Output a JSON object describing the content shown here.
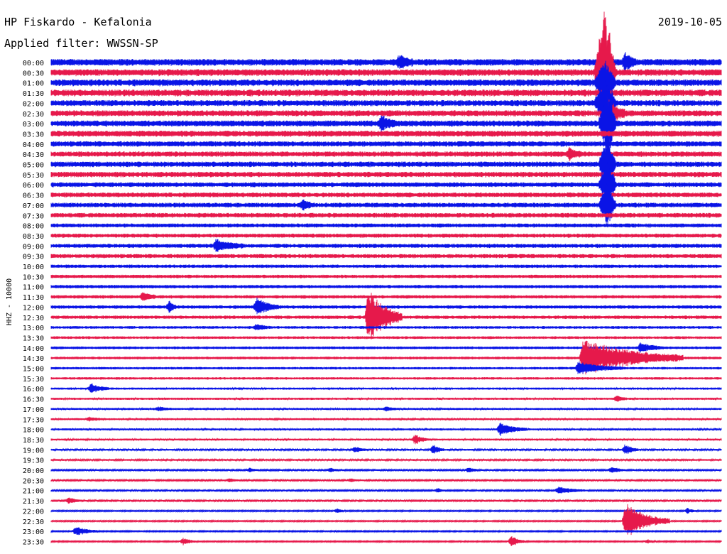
{
  "header": {
    "station": "HP Fiskardo - Kefalonia",
    "filter": "Applied filter: WWSSN-SP",
    "date": "2019-10-05"
  },
  "chart_data": {
    "type": "line",
    "subtype": "helicorder",
    "title": "HP Fiskardo - Kefalonia",
    "subtitle": "Applied filter: WWSSN-SP",
    "date": "2019-10-05",
    "ylabel": "HHZ - 10000",
    "row_labels": [
      "00:00",
      "00:30",
      "01:00",
      "01:30",
      "02:00",
      "02:30",
      "03:00",
      "03:30",
      "04:00",
      "04:30",
      "05:00",
      "05:30",
      "06:00",
      "06:30",
      "07:00",
      "07:30",
      "08:00",
      "08:30",
      "09:00",
      "09:30",
      "10:00",
      "10:30",
      "11:00",
      "11:30",
      "12:00",
      "12:30",
      "13:00",
      "13:30",
      "14:00",
      "14:30",
      "15:00",
      "15:30",
      "16:00",
      "16:30",
      "17:00",
      "17:30",
      "18:00",
      "18:30",
      "19:00",
      "19:30",
      "20:00",
      "20:30",
      "21:00",
      "21:30",
      "22:00",
      "22:30",
      "23:00",
      "23:30"
    ],
    "row_minutes": 30,
    "colors": [
      "#0a14e6",
      "#e6194b"
    ],
    "noise_level": [
      5,
      5,
      5,
      5,
      4.5,
      4.5,
      4.5,
      4.5,
      4,
      4,
      4,
      4,
      3.5,
      3.5,
      3.5,
      3.5,
      3,
      3,
      3,
      3,
      2.5,
      2.5,
      2.5,
      2.5,
      2.5,
      2.5,
      2,
      2,
      2,
      2,
      1.8,
      1.8,
      1.6,
      1.6,
      1.5,
      1.5,
      1.5,
      1.5,
      1.3,
      1.3,
      1.2,
      1.2,
      1.2,
      1.2,
      1,
      1,
      1,
      1
    ],
    "events": [
      {
        "row": 0,
        "minute": 15.6,
        "amp": 10,
        "dur": 0.6
      },
      {
        "row": 0,
        "minute": 25.7,
        "amp": 12,
        "dur": 0.5
      },
      {
        "row": 1,
        "minute": 24.8,
        "amp": 95,
        "dur": 0.5,
        "spike": true
      },
      {
        "row": 2,
        "minute": 24.8,
        "amp": 30,
        "dur": 0.5,
        "spike": true
      },
      {
        "row": 4,
        "minute": 24.8,
        "amp": 40,
        "dur": 0.5,
        "spike": true
      },
      {
        "row": 5,
        "minute": 24.9,
        "amp": 25,
        "dur": 0.8
      },
      {
        "row": 6,
        "minute": 14.8,
        "amp": 12,
        "dur": 0.6
      },
      {
        "row": 6,
        "minute": 24.9,
        "amp": 60,
        "dur": 0.4,
        "spike": true
      },
      {
        "row": 9,
        "minute": 23.2,
        "amp": 8,
        "dur": 0.6
      },
      {
        "row": 10,
        "minute": 24.9,
        "amp": 40,
        "dur": 0.4,
        "spike": true
      },
      {
        "row": 12,
        "minute": 24.9,
        "amp": 40,
        "dur": 0.4,
        "spike": true
      },
      {
        "row": 14,
        "minute": 24.9,
        "amp": 35,
        "dur": 0.4,
        "spike": true
      },
      {
        "row": 14,
        "minute": 11.3,
        "amp": 8,
        "dur": 0.4
      },
      {
        "row": 18,
        "minute": 7.4,
        "amp": 9,
        "dur": 1.2
      },
      {
        "row": 23,
        "minute": 4.1,
        "amp": 6,
        "dur": 0.6
      },
      {
        "row": 24,
        "minute": 5.3,
        "amp": 9,
        "dur": 0.3
      },
      {
        "row": 24,
        "minute": 9.2,
        "amp": 12,
        "dur": 1.0
      },
      {
        "row": 25,
        "minute": 14.2,
        "amp": 42,
        "dur": 1.5
      },
      {
        "row": 26,
        "minute": 9.2,
        "amp": 4,
        "dur": 0.6
      },
      {
        "row": 28,
        "minute": 26.4,
        "amp": 7,
        "dur": 1.0
      },
      {
        "row": 29,
        "minute": 23.8,
        "amp": 28,
        "dur": 4.5
      },
      {
        "row": 30,
        "minute": 23.6,
        "amp": 9,
        "dur": 2.0
      },
      {
        "row": 32,
        "minute": 1.8,
        "amp": 7,
        "dur": 0.8
      },
      {
        "row": 33,
        "minute": 25.3,
        "amp": 4,
        "dur": 0.5
      },
      {
        "row": 34,
        "minute": 4.8,
        "amp": 3,
        "dur": 0.6
      },
      {
        "row": 34,
        "minute": 15.0,
        "amp": 3,
        "dur": 0.6
      },
      {
        "row": 35,
        "minute": 1.7,
        "amp": 3,
        "dur": 0.6
      },
      {
        "row": 36,
        "minute": 20.1,
        "amp": 9,
        "dur": 1.2
      },
      {
        "row": 37,
        "minute": 16.3,
        "amp": 7,
        "dur": 0.6
      },
      {
        "row": 38,
        "minute": 13.6,
        "amp": 4,
        "dur": 0.6
      },
      {
        "row": 38,
        "minute": 17.1,
        "amp": 7,
        "dur": 0.5
      },
      {
        "row": 38,
        "minute": 25.7,
        "amp": 8,
        "dur": 0.6
      },
      {
        "row": 40,
        "minute": 8.9,
        "amp": 3,
        "dur": 0.4
      },
      {
        "row": 40,
        "minute": 12.5,
        "amp": 3,
        "dur": 0.4
      },
      {
        "row": 40,
        "minute": 18.7,
        "amp": 4,
        "dur": 0.4
      },
      {
        "row": 40,
        "minute": 25.1,
        "amp": 5,
        "dur": 0.6
      },
      {
        "row": 41,
        "minute": 8.0,
        "amp": 2.5,
        "dur": 0.4
      },
      {
        "row": 41,
        "minute": 13.4,
        "amp": 2.5,
        "dur": 0.4
      },
      {
        "row": 42,
        "minute": 17.3,
        "amp": 3,
        "dur": 0.4
      },
      {
        "row": 42,
        "minute": 22.7,
        "amp": 5,
        "dur": 1.2
      },
      {
        "row": 43,
        "minute": 0.8,
        "amp": 5,
        "dur": 0.6
      },
      {
        "row": 44,
        "minute": 12.8,
        "amp": 3,
        "dur": 0.4
      },
      {
        "row": 44,
        "minute": 28.5,
        "amp": 4,
        "dur": 0.4
      },
      {
        "row": 45,
        "minute": 25.7,
        "amp": 26,
        "dur": 2.0
      },
      {
        "row": 46,
        "minute": 1.1,
        "amp": 7,
        "dur": 1.0
      },
      {
        "row": 47,
        "minute": 5.9,
        "amp": 5,
        "dur": 0.6
      },
      {
        "row": 47,
        "minute": 20.6,
        "amp": 9,
        "dur": 0.6
      },
      {
        "row": 47,
        "minute": 26.7,
        "amp": 3,
        "dur": 0.4
      }
    ]
  }
}
